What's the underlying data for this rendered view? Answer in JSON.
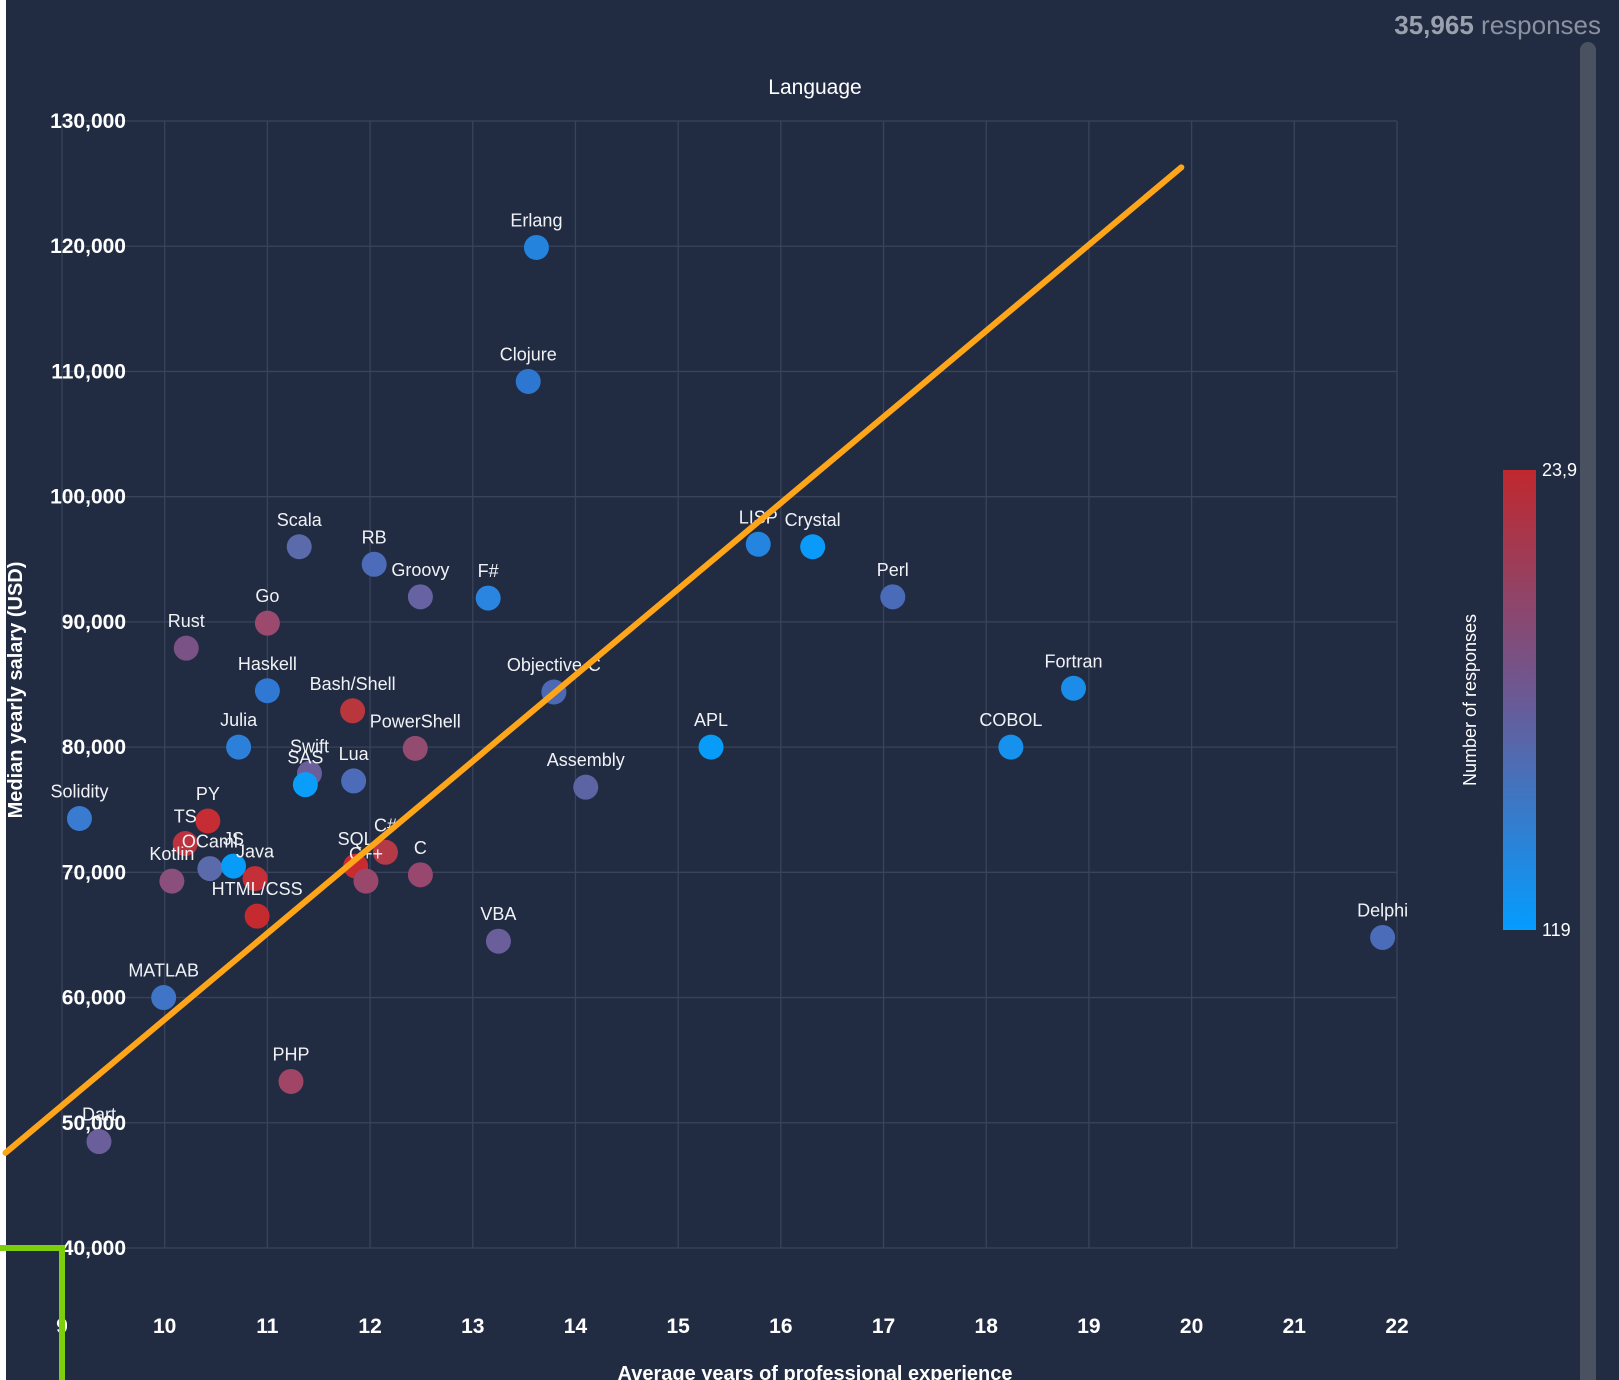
{
  "responses": {
    "count": "35,965",
    "suffix": "responses"
  },
  "colors": {
    "background": "#212b42",
    "trend": "#ffa51a",
    "marker": "#7ccf0a",
    "grid": "#39435a"
  },
  "chart_data": {
    "type": "scatter",
    "title": "Language",
    "xlabel": "Average years of professional experience",
    "ylabel": "Median yearly salary (USD)",
    "xlim": [
      9,
      22
    ],
    "ylim": [
      40000,
      130000
    ],
    "xticks": [
      9,
      10,
      11,
      12,
      13,
      14,
      15,
      16,
      17,
      18,
      19,
      20,
      21,
      22
    ],
    "xtick_labels": [
      "9",
      "10",
      "11",
      "12",
      "13",
      "14",
      "15",
      "16",
      "17",
      "18",
      "19",
      "20",
      "21",
      "22"
    ],
    "yticks": [
      40000,
      50000,
      60000,
      70000,
      80000,
      90000,
      100000,
      110000,
      120000,
      130000
    ],
    "ytick_labels": [
      "40,000",
      "50,000",
      "60,000",
      "70,000",
      "80,000",
      "90,000",
      "100,000",
      "110,000",
      "120,000",
      "130,000"
    ],
    "grid": true,
    "colorbar": {
      "title": "Number of responses",
      "max_label": "23,9",
      "min_label": "119",
      "max_color": "#c0282e",
      "mid_color": "#6a5a96",
      "min_color": "#049cff"
    },
    "points": [
      {
        "name": "Erlang",
        "x": 13.62,
        "y": 119900,
        "color": "#2383dd"
      },
      {
        "name": "Clojure",
        "x": 13.54,
        "y": 109200,
        "color": "#2e77d0"
      },
      {
        "name": "Scala",
        "x": 11.31,
        "y": 96000,
        "color": "#5a6aab"
      },
      {
        "name": "RB",
        "x": 12.04,
        "y": 94600,
        "color": "#4c6cb9"
      },
      {
        "name": "Groovy",
        "x": 12.49,
        "y": 92000,
        "color": "#6763a3"
      },
      {
        "name": "F#",
        "x": 13.15,
        "y": 91900,
        "color": "#2a85e0"
      },
      {
        "name": "Go",
        "x": 11.0,
        "y": 89900,
        "color": "#9b4a6e"
      },
      {
        "name": "Rust",
        "x": 10.21,
        "y": 87900,
        "color": "#7a5285"
      },
      {
        "name": "Haskell",
        "x": 11.0,
        "y": 84500,
        "color": "#2f78d4"
      },
      {
        "name": "Bash/Shell",
        "x": 11.83,
        "y": 82900,
        "color": "#b8363c"
      },
      {
        "name": "Julia",
        "x": 10.72,
        "y": 80000,
        "color": "#2d80da"
      },
      {
        "name": "PowerShell",
        "x": 12.44,
        "y": 79900,
        "color": "#934b70"
      },
      {
        "name": "Swift",
        "x": 11.41,
        "y": 77900,
        "color": "#6a5f9b"
      },
      {
        "name": "SAS",
        "x": 11.37,
        "y": 77000,
        "color": "#0a9dfa"
      },
      {
        "name": "Lua",
        "x": 11.84,
        "y": 77300,
        "color": "#4c6cb9"
      },
      {
        "name": "Solidity",
        "x": 9.17,
        "y": 74300,
        "color": "#3a7bd2"
      },
      {
        "name": "PY",
        "x": 10.42,
        "y": 74100,
        "color": "#c52c34"
      },
      {
        "name": "TS",
        "x": 10.2,
        "y": 72300,
        "color": "#bc333e"
      },
      {
        "name": "OCaml",
        "x": 10.44,
        "y": 70300,
        "color": "#5a6aab"
      },
      {
        "name": "JS",
        "x": 10.67,
        "y": 70500,
        "color": "#079cf8"
      },
      {
        "name": "Kotlin",
        "x": 10.07,
        "y": 69300,
        "color": "#8a4f7a"
      },
      {
        "name": "Java",
        "x": 10.88,
        "y": 69500,
        "color": "#c53038"
      },
      {
        "name": "HTML/CSS",
        "x": 10.9,
        "y": 66500,
        "color": "#c52a2f"
      },
      {
        "name": "SQL",
        "x": 11.86,
        "y": 70500,
        "color": "#c82b30"
      },
      {
        "name": "C#",
        "x": 12.15,
        "y": 71600,
        "color": "#b43a48"
      },
      {
        "name": "C++",
        "x": 11.96,
        "y": 69300,
        "color": "#9a476c"
      },
      {
        "name": "C",
        "x": 12.49,
        "y": 69800,
        "color": "#98476e"
      },
      {
        "name": "Objective-C",
        "x": 13.79,
        "y": 84400,
        "color": "#4d69b3"
      },
      {
        "name": "Assembly",
        "x": 14.1,
        "y": 76800,
        "color": "#5c64a4"
      },
      {
        "name": "VBA",
        "x": 13.25,
        "y": 64500,
        "color": "#6a5f9b"
      },
      {
        "name": "APL",
        "x": 15.32,
        "y": 80000,
        "color": "#089cf9"
      },
      {
        "name": "LISP",
        "x": 15.78,
        "y": 96200,
        "color": "#2485e0"
      },
      {
        "name": "Crystal",
        "x": 16.31,
        "y": 96000,
        "color": "#0a9bfa"
      },
      {
        "name": "Perl",
        "x": 17.09,
        "y": 92000,
        "color": "#4a6cb8"
      },
      {
        "name": "Fortran",
        "x": 18.85,
        "y": 84700,
        "color": "#1b8ce8"
      },
      {
        "name": "COBOL",
        "x": 18.24,
        "y": 80000,
        "color": "#1791ee"
      },
      {
        "name": "Delphi",
        "x": 21.86,
        "y": 64800,
        "color": "#4b6cb8"
      },
      {
        "name": "MATLAB",
        "x": 9.99,
        "y": 60000,
        "color": "#3f74c6"
      },
      {
        "name": "PHP",
        "x": 11.23,
        "y": 53300,
        "color": "#a04565"
      },
      {
        "name": "Dart",
        "x": 9.36,
        "y": 48500,
        "color": "#6a5f9b"
      }
    ],
    "trendline": {
      "x": [
        8.45,
        19.9
      ],
      "y": [
        47600,
        126300
      ]
    },
    "highlight_marker": {
      "x": 9,
      "y": 40000
    }
  }
}
